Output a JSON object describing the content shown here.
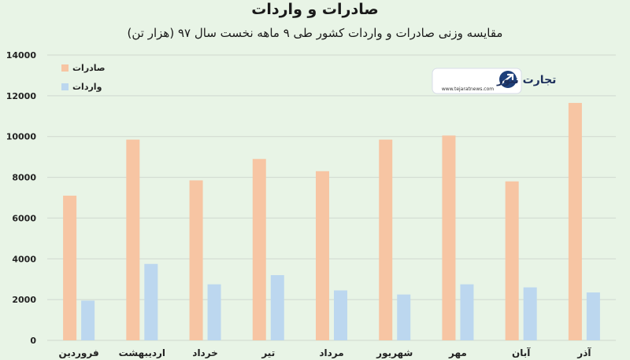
{
  "colors": {
    "background": "#e8f4e6",
    "exports": "#f7c5a3",
    "imports": "#bcd7ef",
    "grid": "#cfd8cf"
  },
  "logo": {
    "text": "تجارت نیوز",
    "url": "www.tejaratnews.com",
    "icon": "arrow-swoosh-icon"
  },
  "chart_data": {
    "type": "bar",
    "title": "صادرات و واردات",
    "subtitle": "مقایسه وزنی صادرات و واردات کشور طی ۹ ماهه نخست سال ۹۷ (هزار تن)",
    "categories": [
      "فروردین",
      "اردیبهشت",
      "خرداد",
      "تیر",
      "مرداد",
      "شهریور",
      "مهر",
      "آبان",
      "آذر"
    ],
    "series": [
      {
        "name": "صادرات",
        "values": [
          7100,
          9850,
          7850,
          8900,
          8300,
          9850,
          10050,
          7800,
          11650
        ]
      },
      {
        "name": "واردات",
        "values": [
          1950,
          3750,
          2750,
          3200,
          2450,
          2250,
          2750,
          2600,
          2350
        ]
      }
    ],
    "ylim": [
      0,
      14000
    ],
    "yticks": [
      "0",
      "2000",
      "4000",
      "6000",
      "8000",
      "10000",
      "12000",
      "14000"
    ],
    "grid": true,
    "legend_position": "top-left"
  }
}
